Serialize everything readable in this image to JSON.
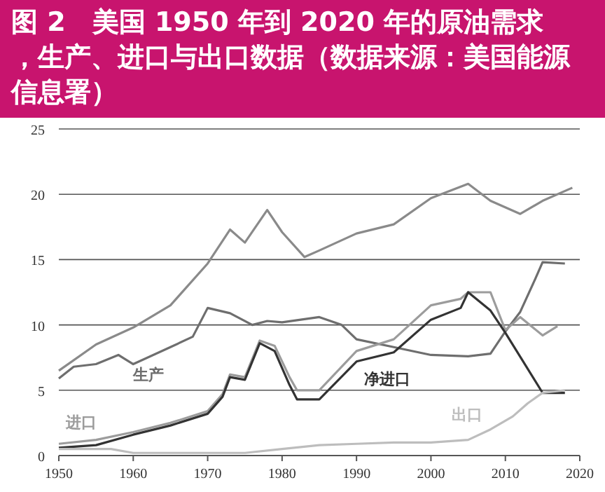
{
  "chart_data": {
    "type": "line",
    "title": "图 2　美国 1950 年到 2020 年的原油需求，生产、进口与出口数据（数据来源：美国能源信息署）",
    "xlim": [
      1950,
      2020
    ],
    "xticks": [
      1950,
      1960,
      1970,
      1980,
      1990,
      2000,
      2010,
      2020
    ],
    "ylim": [
      0,
      25
    ],
    "yticks": [
      0,
      5,
      10,
      15,
      20,
      25
    ],
    "grid": "y",
    "series": [
      {
        "color": "#8a8a8a",
        "x": [
          1950,
          1955,
          1960,
          1965,
          1970,
          1973,
          1975,
          1978,
          1980,
          1983,
          1985,
          1990,
          1995,
          2000,
          2005,
          2008,
          2012,
          2015,
          2019
        ],
        "values": [
          6.5,
          8.5,
          9.8,
          11.5,
          14.7,
          17.3,
          16.3,
          18.8,
          17.1,
          15.2,
          15.7,
          17.0,
          17.7,
          19.7,
          20.8,
          19.5,
          18.5,
          19.5,
          20.5
        ]
      },
      {
        "name": "生产",
        "color": "#6e6e6e",
        "x": [
          1950,
          1952,
          1955,
          1958,
          1960,
          1965,
          1968,
          1970,
          1973,
          1976,
          1978,
          1980,
          1985,
          1988,
          1990,
          1995,
          2000,
          2005,
          2008,
          2010,
          2012,
          2014,
          2015,
          2018
        ],
        "values": [
          5.9,
          6.8,
          7.0,
          7.7,
          7.0,
          8.3,
          9.1,
          11.3,
          10.9,
          10.0,
          10.3,
          10.2,
          10.6,
          10.0,
          8.9,
          8.3,
          7.7,
          7.6,
          7.8,
          9.5,
          11.0,
          13.5,
          14.8,
          14.7
        ]
      },
      {
        "name": "进口",
        "color": "#9c9c9c",
        "x": [
          1950,
          1955,
          1960,
          1965,
          1970,
          1972,
          1973,
          1975,
          1977,
          1979,
          1981,
          1982,
          1985,
          1990,
          1995,
          2000,
          2004,
          2005,
          2008,
          2010,
          2012,
          2015,
          2017
        ],
        "values": [
          0.9,
          1.2,
          1.8,
          2.5,
          3.4,
          4.7,
          6.2,
          6.0,
          8.8,
          8.4,
          6.0,
          5.0,
          5.0,
          8.0,
          8.9,
          11.5,
          12.0,
          12.5,
          12.5,
          9.6,
          10.6,
          9.2,
          9.9
        ]
      },
      {
        "name": "净进口",
        "color": "#333333",
        "x": [
          1950,
          1955,
          1960,
          1965,
          1970,
          1972,
          1973,
          1975,
          1977,
          1979,
          1981,
          1982,
          1985,
          1990,
          1995,
          2000,
          2004,
          2005,
          2008,
          2010,
          2015,
          2018
        ],
        "values": [
          0.6,
          0.8,
          1.6,
          2.3,
          3.2,
          4.5,
          6.0,
          5.8,
          8.6,
          8.0,
          5.4,
          4.3,
          4.3,
          7.2,
          7.9,
          10.4,
          11.3,
          12.5,
          11.1,
          9.4,
          4.8,
          4.8
        ]
      },
      {
        "name": "出口",
        "color": "#bdbdbd",
        "x": [
          1950,
          1957,
          1960,
          1970,
          1975,
          1980,
          1985,
          1990,
          1995,
          2000,
          2005,
          2008,
          2011,
          2013,
          2015,
          2018
        ],
        "values": [
          0.5,
          0.5,
          0.2,
          0.2,
          0.2,
          0.5,
          0.8,
          0.9,
          1.0,
          1.0,
          1.2,
          2.0,
          3.0,
          4.0,
          4.8,
          5.0
        ]
      }
    ]
  }
}
